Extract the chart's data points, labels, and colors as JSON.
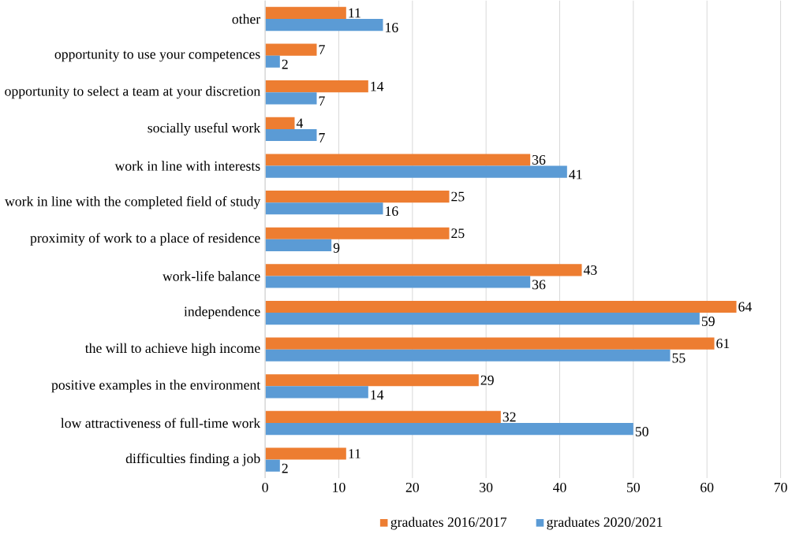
{
  "chart_data": {
    "type": "bar",
    "orientation": "horizontal",
    "categories": [
      "other",
      "opportunity to use your competences",
      "opportunity to select a team at your discretion",
      "socially useful work",
      "work in line with interests",
      "work in line with the completed field of study",
      "proximity of work to a place of residence",
      "work-life balance",
      "independence",
      "the will to achieve high income",
      "positive examples in the environment",
      "low attractiveness of full-time work",
      "difficulties finding a job"
    ],
    "series": [
      {
        "name": "graduates 2016/2017",
        "color": "#ed7d31",
        "values": [
          11,
          7,
          14,
          4,
          36,
          25,
          25,
          43,
          64,
          61,
          29,
          32,
          11
        ]
      },
      {
        "name": "graduates 2020/2021",
        "color": "#5b9bd5",
        "values": [
          16,
          2,
          7,
          7,
          41,
          16,
          9,
          36,
          59,
          55,
          14,
          50,
          2
        ]
      }
    ],
    "xlim": [
      0,
      70
    ],
    "xticks": [
      0,
      10,
      20,
      30,
      40,
      50,
      60,
      70
    ],
    "grid": "x",
    "legend": "bottom",
    "data_labels": true
  }
}
